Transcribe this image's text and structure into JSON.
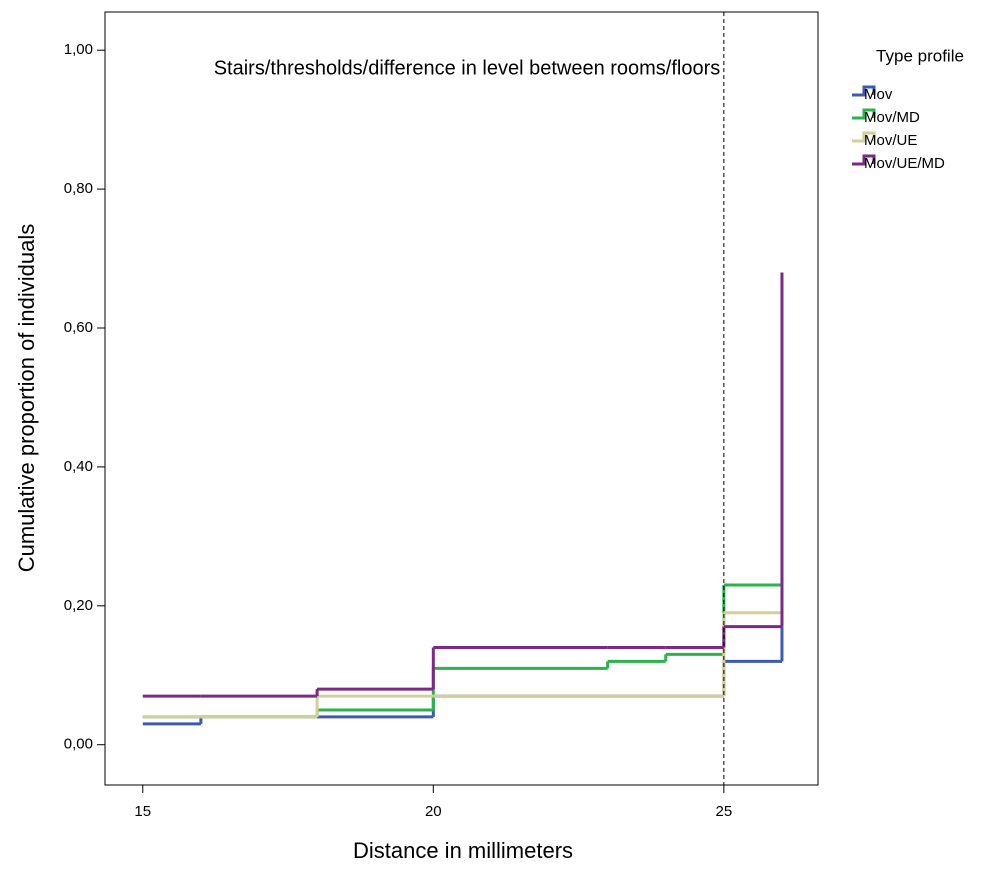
{
  "chart_data": {
    "type": "step",
    "title": "Stairs/thresholds/difference in level between rooms/floors",
    "xlabel": "Distance in millimeters",
    "ylabel": "Cumulative proportion of individuals",
    "legend_title": "Type profile",
    "legend": "right",
    "x": [
      15,
      16,
      18,
      20,
      23,
      24,
      25,
      26
    ],
    "series": [
      {
        "name": "Mov",
        "color": "#3c5ab4",
        "values": [
          0.03,
          0.04,
          0.04,
          0.07,
          0.07,
          0.07,
          0.12,
          0.17
        ]
      },
      {
        "name": "Mov/MD",
        "color": "#2ab34a",
        "values": [
          0.04,
          0.04,
          0.05,
          0.11,
          0.12,
          0.13,
          0.23,
          0.23
        ]
      },
      {
        "name": "Mov/UE",
        "color": "#d3cf9a",
        "values": [
          0.04,
          0.04,
          0.07,
          0.07,
          0.07,
          0.07,
          0.19,
          0.19
        ]
      },
      {
        "name": "Mov/UE/MD",
        "color": "#7a2a85",
        "values": [
          0.07,
          0.07,
          0.08,
          0.14,
          0.14,
          0.14,
          0.17,
          0.68
        ]
      }
    ],
    "vline": 25,
    "xlim": [
      14.35,
      26.62
    ],
    "xticks": [
      15,
      20,
      25
    ],
    "ylim": [
      -0.058,
      1.055
    ],
    "yticks": [
      {
        "value": 0,
        "label": "0,00"
      },
      {
        "value": 0.2,
        "label": "0,20"
      },
      {
        "value": 0.4,
        "label": "0,40"
      },
      {
        "value": 0.6,
        "label": "0,60"
      },
      {
        "value": 0.8,
        "label": "0,80"
      },
      {
        "value": 1,
        "label": "1,00"
      }
    ]
  }
}
